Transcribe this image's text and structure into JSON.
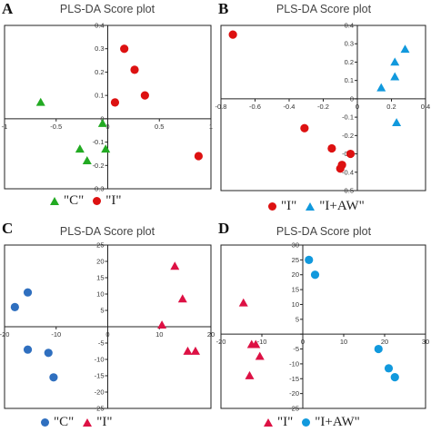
{
  "panels": [
    {
      "letter": "A",
      "title": "PLS-DA Score plot",
      "legend": [
        {
          "label": "\"C\"",
          "marker": "triangle",
          "color": "#22aa22"
        },
        {
          "label": "\"I\"",
          "marker": "circle",
          "color": "#dd1111"
        }
      ]
    },
    {
      "letter": "B",
      "title": "PLS-DA Score plot",
      "legend": [
        {
          "label": "\"I\"",
          "marker": "circle",
          "color": "#dd1111"
        },
        {
          "label": "\"I+AW\"",
          "marker": "triangle",
          "color": "#1199dd"
        }
      ]
    },
    {
      "letter": "C",
      "title": "PLS-DA Score plot",
      "legend": [
        {
          "label": "\"C\"",
          "marker": "circle",
          "color": "#2f6fbf"
        },
        {
          "label": "\"I\"",
          "marker": "triangle",
          "color": "#dd1144"
        }
      ]
    },
    {
      "letter": "D",
      "title": "PLS-DA Score plot",
      "legend": [
        {
          "label": "\"I\"",
          "marker": "triangle",
          "color": "#dd1144"
        },
        {
          "label": "\"I+AW\"",
          "marker": "circle",
          "color": "#1199dd"
        }
      ]
    }
  ],
  "chart_data": [
    {
      "type": "scatter",
      "title": "PLS-DA Score plot",
      "xlim": [
        -1,
        1
      ],
      "ylim": [
        -0.3,
        0.4
      ],
      "xticks": [
        -1,
        -0.5,
        0,
        0.5,
        1
      ],
      "yticks": [
        -0.3,
        -0.2,
        -0.1,
        0,
        0.1,
        0.2,
        0.3,
        0.4
      ],
      "series": [
        {
          "name": "\"C\"",
          "marker": "triangle",
          "color": "#22aa22",
          "points": [
            [
              -0.65,
              0.07
            ],
            [
              -0.27,
              -0.13
            ],
            [
              -0.05,
              -0.02
            ],
            [
              -0.2,
              -0.18
            ],
            [
              -0.02,
              -0.13
            ]
          ]
        },
        {
          "name": "\"I\"",
          "marker": "circle",
          "color": "#dd1111",
          "points": [
            [
              0.16,
              0.3
            ],
            [
              0.26,
              0.21
            ],
            [
              0.36,
              0.1
            ],
            [
              0.07,
              0.07
            ],
            [
              0.88,
              -0.16
            ]
          ]
        }
      ]
    },
    {
      "type": "scatter",
      "title": "PLS-DA Score plot",
      "xlim": [
        -0.8,
        0.4
      ],
      "ylim": [
        -0.5,
        0.4
      ],
      "xticks": [
        -0.8,
        -0.6,
        -0.4,
        -0.2,
        0,
        0.2,
        0.4
      ],
      "yticks": [
        -0.5,
        -0.4,
        -0.3,
        -0.2,
        -0.1,
        0,
        0.1,
        0.2,
        0.3,
        0.4
      ],
      "series": [
        {
          "name": "\"I\"",
          "marker": "circle",
          "color": "#dd1111",
          "points": [
            [
              -0.73,
              0.35
            ],
            [
              -0.31,
              -0.16
            ],
            [
              -0.15,
              -0.27
            ],
            [
              -0.04,
              -0.3
            ],
            [
              -0.09,
              -0.36
            ],
            [
              -0.1,
              -0.38
            ]
          ]
        },
        {
          "name": "\"I+AW\"",
          "marker": "triangle",
          "color": "#1199dd",
          "points": [
            [
              0.28,
              0.27
            ],
            [
              0.22,
              0.2
            ],
            [
              0.22,
              0.12
            ],
            [
              0.14,
              0.06
            ],
            [
              0.23,
              -0.13
            ]
          ]
        }
      ]
    },
    {
      "type": "scatter",
      "title": "PLS-DA Score plot",
      "xlim": [
        -20,
        20
      ],
      "ylim": [
        -25,
        25
      ],
      "xticks": [
        -20,
        -10,
        0,
        10,
        20
      ],
      "yticks": [
        -25,
        -20,
        -15,
        -10,
        -5,
        0,
        5,
        10,
        15,
        20,
        25
      ],
      "series": [
        {
          "name": "\"C\"",
          "marker": "circle",
          "color": "#2f6fbf",
          "points": [
            [
              -15.5,
              10.5
            ],
            [
              -18,
              6
            ],
            [
              -15.5,
              -7
            ],
            [
              -11.5,
              -8
            ],
            [
              -10.5,
              -15.5
            ]
          ]
        },
        {
          "name": "\"I\"",
          "marker": "triangle",
          "color": "#dd1144",
          "points": [
            [
              13,
              18.5
            ],
            [
              14.5,
              8.5
            ],
            [
              10.5,
              0.5
            ],
            [
              15.5,
              -7.5
            ],
            [
              17,
              -7.5
            ]
          ]
        }
      ]
    },
    {
      "type": "scatter",
      "title": "PLS-DA Score plot",
      "xlim": [
        -20,
        30
      ],
      "ylim": [
        -25,
        30
      ],
      "xticks": [
        -20,
        -10,
        0,
        10,
        20,
        30
      ],
      "yticks": [
        -25,
        -20,
        -15,
        -10,
        -5,
        0,
        5,
        10,
        15,
        20,
        25,
        30
      ],
      "series": [
        {
          "name": "\"I\"",
          "marker": "triangle",
          "color": "#dd1144",
          "points": [
            [
              -14.5,
              10.5
            ],
            [
              -12.5,
              -3.5
            ],
            [
              -11.5,
              -3.5
            ],
            [
              -10.5,
              -7.5
            ],
            [
              -13,
              -14
            ]
          ]
        },
        {
          "name": "\"I+AW\"",
          "marker": "circle",
          "color": "#1199dd",
          "points": [
            [
              1.5,
              25
            ],
            [
              3,
              20
            ],
            [
              18.5,
              -5
            ],
            [
              21,
              -11.5
            ],
            [
              22.5,
              -14.5
            ]
          ]
        }
      ]
    }
  ]
}
